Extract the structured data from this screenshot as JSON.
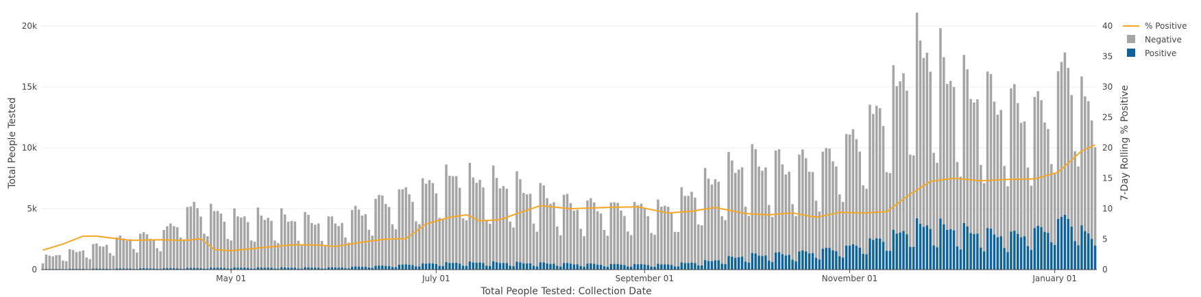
{
  "chart_data": {
    "type": "bar",
    "stacked": true,
    "x_axis_title": "Total People Tested: Collection Date",
    "y_axis_title": "Total People Tested",
    "y2_axis_title": "7-Day Rolling % Positive",
    "x_range": [
      "2020-03-06",
      "2021-01-13"
    ],
    "ylim": [
      0,
      20000
    ],
    "y2lim": [
      0,
      40
    ],
    "y_ticks": [
      0,
      5000,
      10000,
      15000,
      20000
    ],
    "y_tick_labels": [
      "0",
      "5k",
      "10k",
      "15k",
      "20k"
    ],
    "y2_ticks": [
      0,
      5,
      10,
      15,
      20,
      25,
      30,
      35,
      40
    ],
    "y2_tick_labels": [
      "0",
      "5",
      "10",
      "15",
      "20",
      "25",
      "30",
      "35",
      "40"
    ],
    "x_ticks": [
      "2020-05-01",
      "2020-07-01",
      "2020-09-01",
      "2020-11-01",
      "2021-01-01"
    ],
    "x_tick_labels": [
      "May 01",
      "July 01",
      "September 01",
      "November 01",
      "January 01"
    ],
    "grid": true,
    "legend_position": "top-right",
    "series": [
      {
        "name": "Negative",
        "kind": "bar",
        "color": "#a5a5a5",
        "anchors": [
          [
            "2020-03-06",
            900
          ],
          [
            "2020-03-20",
            1600
          ],
          [
            "2020-04-01",
            2500
          ],
          [
            "2020-04-10",
            2600
          ],
          [
            "2020-04-20",
            4900
          ],
          [
            "2020-05-01",
            4000
          ],
          [
            "2020-05-15",
            3900
          ],
          [
            "2020-06-01",
            3500
          ],
          [
            "2020-06-15",
            5200
          ],
          [
            "2020-06-25",
            5900
          ],
          [
            "2020-07-05",
            6800
          ],
          [
            "2020-07-25",
            6000
          ],
          [
            "2020-08-10",
            4700
          ],
          [
            "2020-08-25",
            4500
          ],
          [
            "2020-09-08",
            4500
          ],
          [
            "2020-09-20",
            6200
          ],
          [
            "2020-10-01",
            7400
          ],
          [
            "2020-10-15",
            7000
          ],
          [
            "2020-10-25",
            7200
          ],
          [
            "2020-11-05",
            9000
          ],
          [
            "2020-11-15",
            11500
          ],
          [
            "2020-11-22",
            14000
          ],
          [
            "2020-11-28",
            12500
          ],
          [
            "2020-12-05",
            11200
          ],
          [
            "2020-12-15",
            10600
          ],
          [
            "2020-12-22",
            10000
          ],
          [
            "2020-12-30",
            9300
          ],
          [
            "2021-01-05",
            12500
          ],
          [
            "2021-01-13",
            9000
          ]
        ]
      },
      {
        "name": "Positive",
        "kind": "bar",
        "color": "#0f639c",
        "anchors": [
          [
            "2020-03-06",
            40
          ],
          [
            "2020-04-01",
            90
          ],
          [
            "2020-05-01",
            150
          ],
          [
            "2020-06-01",
            160
          ],
          [
            "2020-06-15",
            300
          ],
          [
            "2020-07-01",
            500
          ],
          [
            "2020-07-15",
            560
          ],
          [
            "2020-08-01",
            500
          ],
          [
            "2020-08-20",
            420
          ],
          [
            "2020-09-08",
            400
          ],
          [
            "2020-09-20",
            650
          ],
          [
            "2020-10-01",
            1100
          ],
          [
            "2020-10-15",
            1250
          ],
          [
            "2020-11-01",
            1800
          ],
          [
            "2020-11-15",
            2800
          ],
          [
            "2020-11-22",
            3500
          ],
          [
            "2020-11-30",
            3300
          ],
          [
            "2020-12-10",
            2900
          ],
          [
            "2020-12-20",
            2700
          ],
          [
            "2020-12-30",
            3300
          ],
          [
            "2021-01-05",
            4200
          ],
          [
            "2021-01-13",
            2200
          ]
        ]
      },
      {
        "name": "% Positive",
        "kind": "line",
        "axis": "y2",
        "color": "#f5a623",
        "points": [
          [
            "2020-03-06",
            3.2
          ],
          [
            "2020-03-12",
            4.2
          ],
          [
            "2020-03-18",
            5.5
          ],
          [
            "2020-03-22",
            5.5
          ],
          [
            "2020-04-01",
            4.8
          ],
          [
            "2020-04-10",
            4.9
          ],
          [
            "2020-04-18",
            4.8
          ],
          [
            "2020-04-22",
            5.1
          ],
          [
            "2020-04-26",
            3.3
          ],
          [
            "2020-05-01",
            3.1
          ],
          [
            "2020-05-10",
            3.6
          ],
          [
            "2020-05-20",
            4.1
          ],
          [
            "2020-05-28",
            4.0
          ],
          [
            "2020-06-01",
            3.8
          ],
          [
            "2020-06-10",
            4.6
          ],
          [
            "2020-06-16",
            5.0
          ],
          [
            "2020-06-22",
            5.1
          ],
          [
            "2020-06-28",
            7.5
          ],
          [
            "2020-07-05",
            8.6
          ],
          [
            "2020-07-10",
            9.0
          ],
          [
            "2020-07-14",
            8.0
          ],
          [
            "2020-07-20",
            8.2
          ],
          [
            "2020-07-25",
            9.2
          ],
          [
            "2020-08-01",
            10.5
          ],
          [
            "2020-08-10",
            10.0
          ],
          [
            "2020-08-20",
            10.2
          ],
          [
            "2020-08-30",
            10.3
          ],
          [
            "2020-09-08",
            9.3
          ],
          [
            "2020-09-15",
            9.6
          ],
          [
            "2020-09-22",
            10.2
          ],
          [
            "2020-10-01",
            9.2
          ],
          [
            "2020-10-08",
            9.0
          ],
          [
            "2020-10-15",
            9.3
          ],
          [
            "2020-10-22",
            8.6
          ],
          [
            "2020-10-29",
            9.4
          ],
          [
            "2020-11-05",
            9.3
          ],
          [
            "2020-11-12",
            9.5
          ],
          [
            "2020-11-18",
            12.0
          ],
          [
            "2020-11-25",
            14.5
          ],
          [
            "2020-12-02",
            15.0
          ],
          [
            "2020-12-10",
            14.6
          ],
          [
            "2020-12-18",
            14.8
          ],
          [
            "2020-12-26",
            14.9
          ],
          [
            "2021-01-02",
            16.0
          ],
          [
            "2021-01-09",
            19.5
          ],
          [
            "2021-01-13",
            20.5
          ]
        ]
      }
    ]
  }
}
